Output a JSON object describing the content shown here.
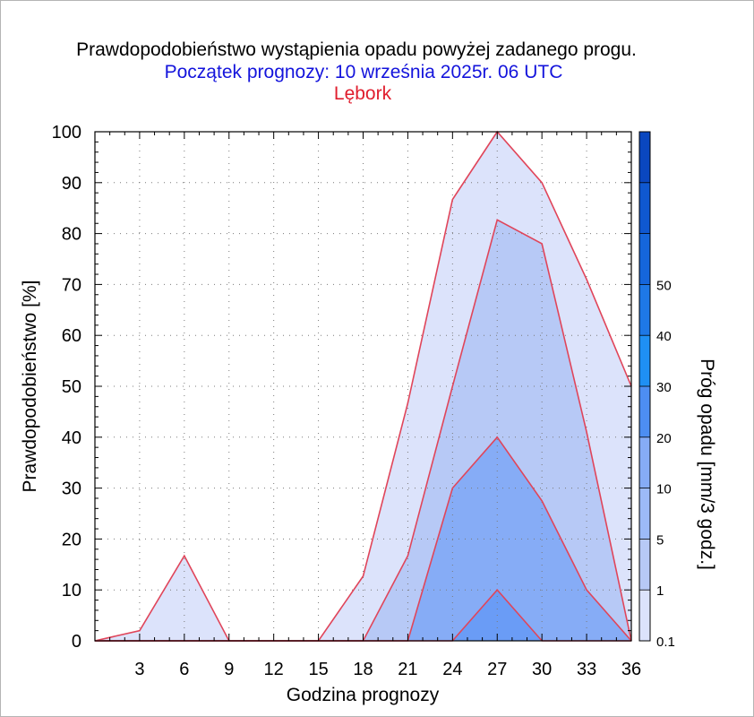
{
  "chart_data": {
    "type": "area",
    "title": "Prawdopodobieństwo wystąpienia opadu powyżej zadanego progu.",
    "subtitle": "Początek prognozy: 10 września 2025r. 06 UTC",
    "location": "Lębork",
    "xlabel": "Godzina prognozy",
    "ylabel": "Prawdopodobieństwo [%]",
    "xlim": [
      0,
      36
    ],
    "ylim": [
      0,
      100
    ],
    "x_ticks": [
      3,
      6,
      9,
      12,
      15,
      18,
      21,
      24,
      27,
      30,
      33,
      36
    ],
    "y_ticks": [
      0,
      10,
      20,
      30,
      40,
      50,
      60,
      70,
      80,
      90,
      100
    ],
    "x": [
      0,
      3,
      6,
      9,
      12,
      15,
      18,
      21,
      24,
      27,
      30,
      33,
      36
    ],
    "series": [
      {
        "threshold": "0.1",
        "color": "#dce3fb",
        "values": [
          0,
          2,
          16.7,
          0,
          0,
          0,
          12.7,
          46.7,
          86.7,
          100,
          90,
          71,
          50
        ]
      },
      {
        "threshold": "1",
        "color": "#b7c9f6",
        "values": [
          0,
          0,
          0,
          0,
          0,
          0,
          0,
          16.7,
          50,
          82.7,
          78,
          41,
          0
        ]
      },
      {
        "threshold": "5",
        "color": "#86acf6",
        "values": [
          0,
          0,
          0,
          0,
          0,
          0,
          0,
          0,
          30,
          40,
          27.5,
          10,
          0
        ]
      },
      {
        "threshold": "10",
        "color": "#6a9cf6",
        "values": [
          0,
          0,
          0,
          0,
          0,
          0,
          0,
          0,
          0,
          10,
          0,
          0,
          0
        ]
      }
    ],
    "line_color": "#e0455a",
    "grid": true,
    "colorbar": {
      "label": "Próg opadu [mm/3 godz.]",
      "tick_labels": [
        "0.1",
        "1",
        "5",
        "10",
        "20",
        "30",
        "40",
        "50"
      ],
      "colors": [
        "#dce3fb",
        "#b7c9f6",
        "#9cbaf7",
        "#86acf6",
        "#4d8ef2",
        "#1f90f4",
        "#1e78e6",
        "#1566db",
        "#0f58d0",
        "#0a47bf"
      ]
    }
  }
}
